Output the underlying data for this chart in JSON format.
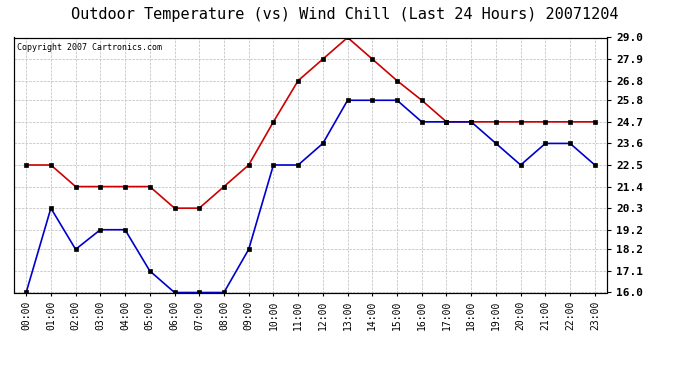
{
  "title": "Outdoor Temperature (vs) Wind Chill (Last 24 Hours) 20071204",
  "copyright": "Copyright 2007 Cartronics.com",
  "hours": [
    "00:00",
    "01:00",
    "02:00",
    "03:00",
    "04:00",
    "05:00",
    "06:00",
    "07:00",
    "08:00",
    "09:00",
    "10:00",
    "11:00",
    "12:00",
    "13:00",
    "14:00",
    "15:00",
    "16:00",
    "17:00",
    "18:00",
    "19:00",
    "20:00",
    "21:00",
    "22:00",
    "23:00"
  ],
  "temp": [
    22.5,
    22.5,
    21.4,
    21.4,
    21.4,
    21.4,
    20.3,
    20.3,
    21.4,
    22.5,
    24.7,
    26.8,
    27.9,
    29.0,
    27.9,
    26.8,
    25.8,
    24.7,
    24.7,
    24.7,
    24.7,
    24.7,
    24.7,
    24.7
  ],
  "windchill": [
    16.0,
    20.3,
    18.2,
    19.2,
    19.2,
    17.1,
    16.0,
    16.0,
    16.0,
    18.2,
    22.5,
    22.5,
    23.6,
    25.8,
    25.8,
    25.8,
    24.7,
    24.7,
    24.7,
    23.6,
    22.5,
    23.6,
    23.6,
    22.5
  ],
  "temp_color": "#cc0000",
  "windchill_color": "#0000cc",
  "ylim_min": 16.0,
  "ylim_max": 29.0,
  "yticks": [
    16.0,
    17.1,
    18.2,
    19.2,
    20.3,
    21.4,
    22.5,
    23.6,
    24.7,
    25.8,
    26.8,
    27.9,
    29.0
  ],
  "background_color": "#ffffff",
  "grid_color": "#bbbbbb",
  "title_fontsize": 11,
  "marker": "s",
  "markersize": 3,
  "linewidth": 1.2
}
